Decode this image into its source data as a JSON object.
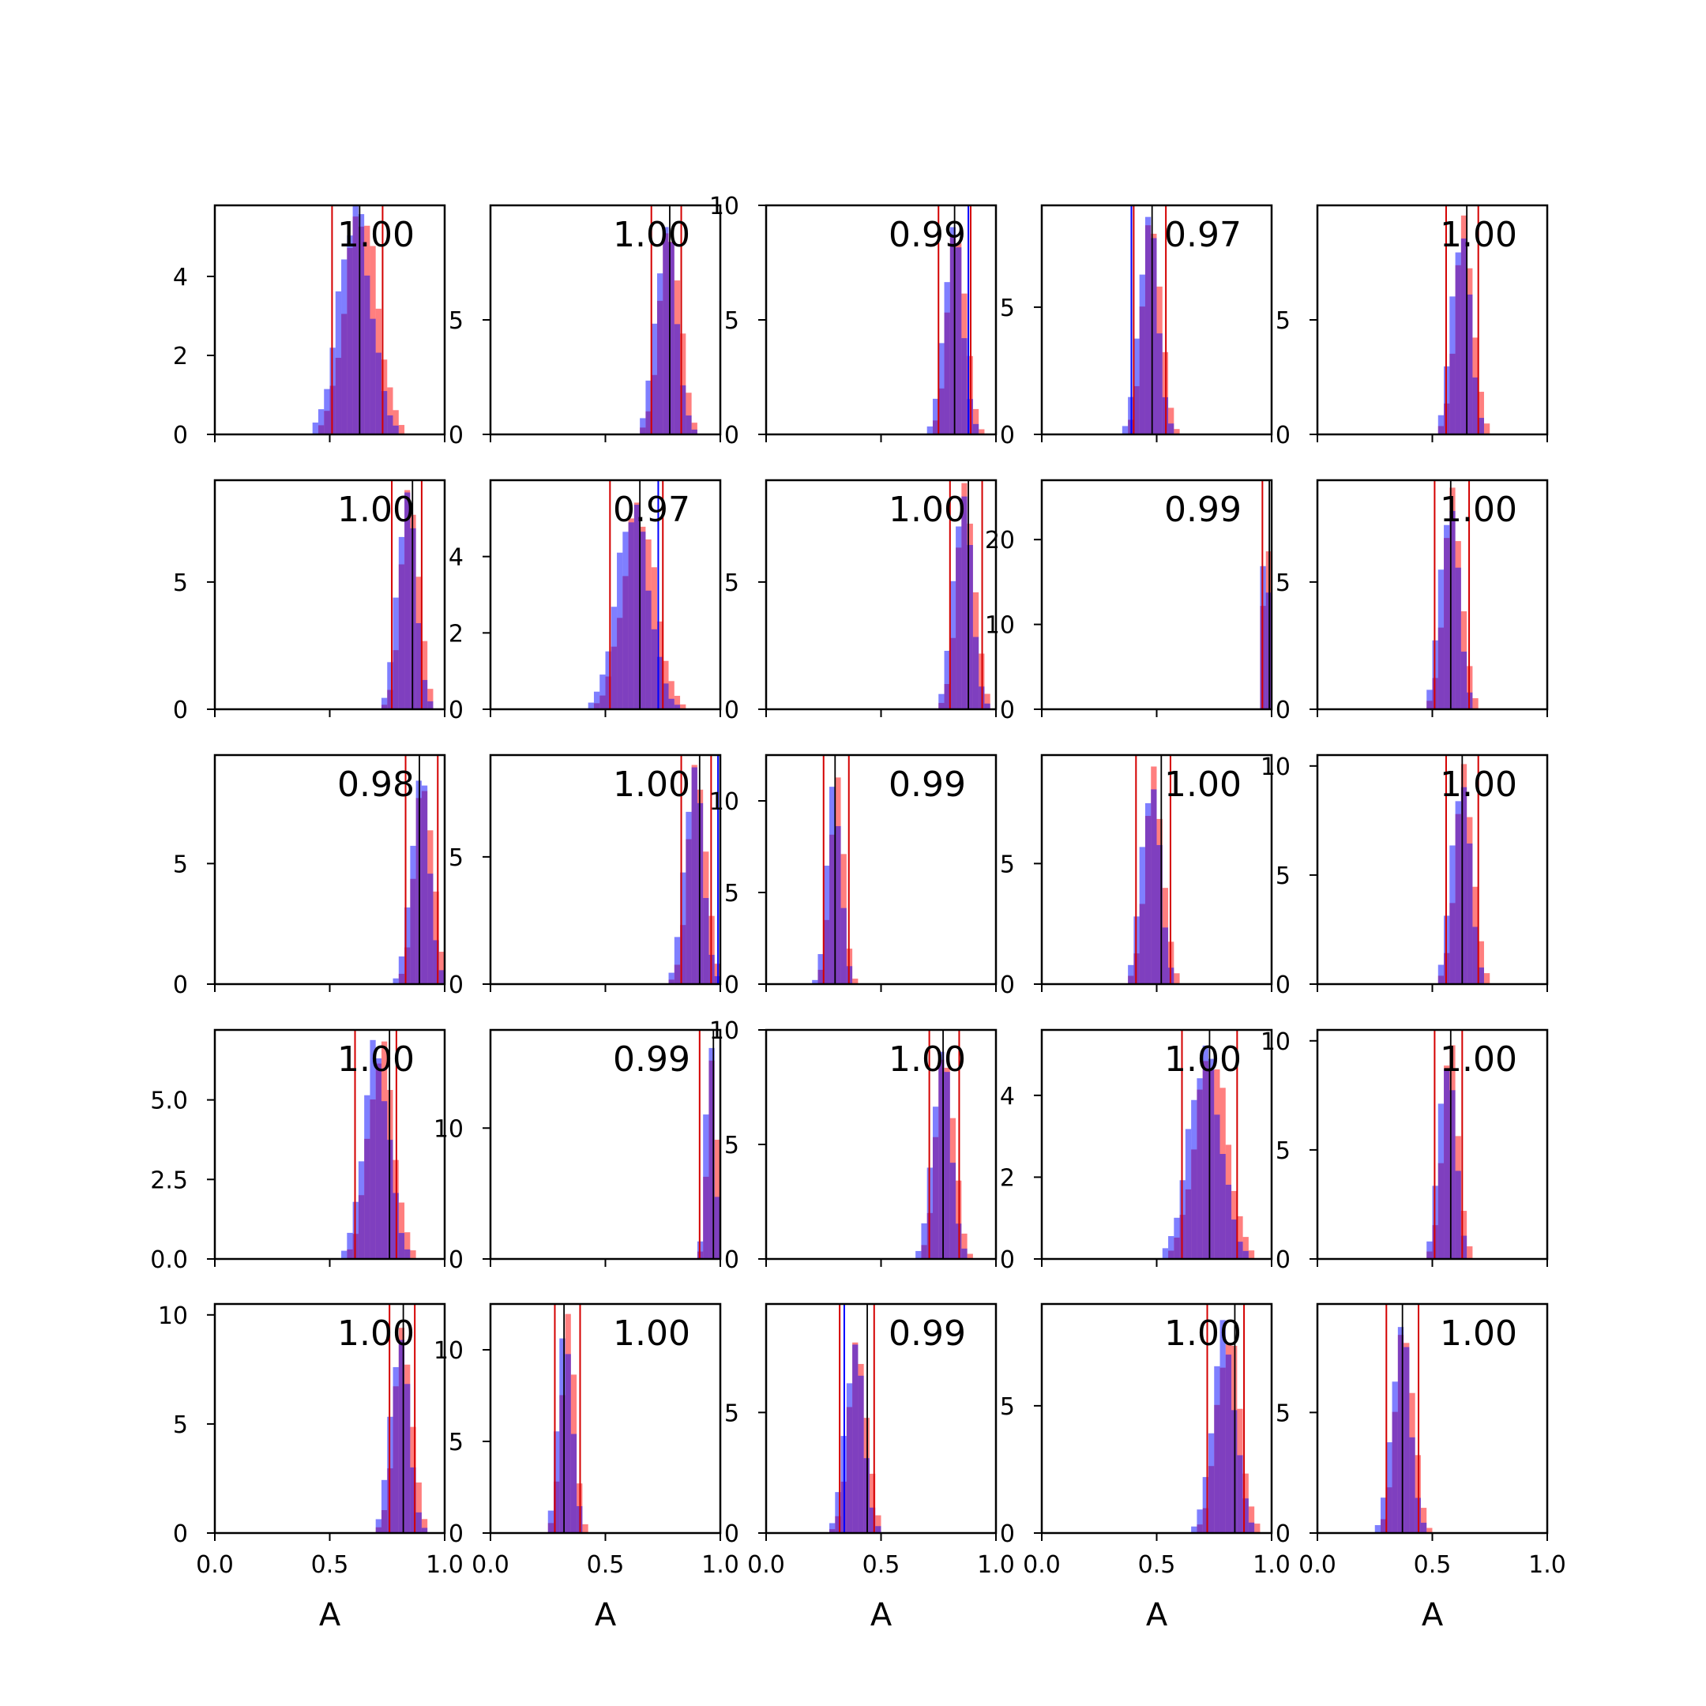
{
  "colors": {
    "hist_a": "#ff0000",
    "hist_b": "#0000ff",
    "hist_opacity": 0.5,
    "interval_lines": "#d40000",
    "point_line": "#000000"
  },
  "chart_data": {
    "type": "histogram-grid",
    "rows": 5,
    "cols": 5,
    "xlim": [
      0,
      1
    ],
    "xticks": [
      "0.0",
      "0.5",
      "1.0"
    ],
    "xlabel": "A",
    "panels": [
      {
        "label": "1.00",
        "ymax": 5.8,
        "yticks": [
          [
            0,
            "0"
          ],
          [
            2,
            "2"
          ],
          [
            4,
            "4"
          ]
        ],
        "mean": 0.62,
        "sd": 0.07,
        "peak": 5.7,
        "lo": 0.51,
        "hi": 0.73,
        "mark": 0.63,
        "bmark": null
      },
      {
        "label": "1.00",
        "ymax": 10,
        "yticks": [
          [
            0,
            "0"
          ],
          [
            5,
            "5"
          ]
        ],
        "mean": 0.77,
        "sd": 0.045,
        "peak": 9.0,
        "lo": 0.7,
        "hi": 0.83,
        "mark": 0.78,
        "bmark": null
      },
      {
        "label": "0.99",
        "ymax": 10,
        "yticks": [
          [
            0,
            "0"
          ],
          [
            5,
            "5"
          ],
          [
            10,
            "10"
          ]
        ],
        "mean": 0.82,
        "sd": 0.04,
        "peak": 9.0,
        "lo": 0.75,
        "hi": 0.89,
        "mark": 0.82,
        "bmark": 0.88
      },
      {
        "label": "0.97",
        "ymax": 9,
        "yticks": [
          [
            0,
            "0"
          ],
          [
            5,
            "5"
          ]
        ],
        "mean": 0.47,
        "sd": 0.04,
        "peak": 8.5,
        "lo": 0.4,
        "hi": 0.54,
        "mark": 0.48,
        "bmark": 0.39
      },
      {
        "label": "1.00",
        "ymax": 10,
        "yticks": [
          [
            0,
            "0"
          ],
          [
            5,
            "5"
          ]
        ],
        "mean": 0.63,
        "sd": 0.04,
        "peak": 9.0,
        "lo": 0.56,
        "hi": 0.7,
        "mark": 0.65,
        "bmark": null
      },
      {
        "label": "1.00",
        "ymax": 9,
        "yticks": [
          [
            0,
            "0"
          ],
          [
            5,
            "5"
          ]
        ],
        "mean": 0.84,
        "sd": 0.04,
        "peak": 8.5,
        "lo": 0.77,
        "hi": 0.9,
        "mark": 0.86,
        "bmark": null
      },
      {
        "label": "0.97",
        "ymax": 6,
        "yticks": [
          [
            0,
            "0"
          ],
          [
            2,
            "2"
          ],
          [
            4,
            "4"
          ]
        ],
        "mean": 0.63,
        "sd": 0.07,
        "peak": 5.3,
        "lo": 0.52,
        "hi": 0.75,
        "mark": 0.65,
        "bmark": 0.73
      },
      {
        "label": "1.00",
        "ymax": 9,
        "yticks": [
          [
            0,
            "0"
          ],
          [
            5,
            "5"
          ]
        ],
        "mean": 0.86,
        "sd": 0.04,
        "peak": 8.5,
        "lo": 0.8,
        "hi": 0.94,
        "mark": 0.88,
        "bmark": null
      },
      {
        "label": "0.99",
        "ymax": 27,
        "yticks": [
          [
            0,
            "0"
          ],
          [
            10,
            "10"
          ],
          [
            20,
            "20"
          ]
        ],
        "mean": 0.975,
        "sd": 0.012,
        "peak": 26,
        "lo": 0.96,
        "hi": 1.0,
        "mark": 0.99,
        "bmark": null
      },
      {
        "label": "1.00",
        "ymax": 9,
        "yticks": [
          [
            0,
            "0"
          ],
          [
            5,
            "5"
          ]
        ],
        "mean": 0.58,
        "sd": 0.04,
        "peak": 8.2,
        "lo": 0.51,
        "hi": 0.66,
        "mark": 0.58,
        "bmark": null
      },
      {
        "label": "0.98",
        "ymax": 9.5,
        "yticks": [
          [
            0,
            "0"
          ],
          [
            5,
            "5"
          ]
        ],
        "mean": 0.9,
        "sd": 0.04,
        "peak": 8.5,
        "lo": 0.83,
        "hi": 0.97,
        "mark": 0.89,
        "bmark": null
      },
      {
        "label": "1.00",
        "ymax": 9,
        "yticks": [
          [
            0,
            "0"
          ],
          [
            5,
            "5"
          ]
        ],
        "mean": 0.89,
        "sd": 0.04,
        "peak": 8.5,
        "lo": 0.83,
        "hi": 0.96,
        "mark": 0.91,
        "bmark": 0.99
      },
      {
        "label": "0.99",
        "ymax": 12.5,
        "yticks": [
          [
            0,
            "0"
          ],
          [
            5,
            "5"
          ],
          [
            10,
            "10"
          ]
        ],
        "mean": 0.3,
        "sd": 0.03,
        "peak": 11,
        "lo": 0.25,
        "hi": 0.36,
        "mark": 0.3,
        "bmark": null
      },
      {
        "label": "1.00",
        "ymax": 9.5,
        "yticks": [
          [
            0,
            "0"
          ],
          [
            5,
            "5"
          ]
        ],
        "mean": 0.48,
        "sd": 0.04,
        "peak": 8.5,
        "lo": 0.41,
        "hi": 0.56,
        "mark": 0.52,
        "bmark": null
      },
      {
        "label": "1.00",
        "ymax": 10.5,
        "yticks": [
          [
            0,
            "0"
          ],
          [
            5,
            "5"
          ],
          [
            10,
            "10"
          ]
        ],
        "mean": 0.63,
        "sd": 0.04,
        "peak": 9.5,
        "lo": 0.56,
        "hi": 0.7,
        "mark": 0.63,
        "bmark": null
      },
      {
        "label": "1.00",
        "ymax": 7.2,
        "yticks": [
          [
            0,
            "0.0"
          ],
          [
            2.5,
            "2.5"
          ],
          [
            5,
            "5.0"
          ]
        ],
        "mean": 0.71,
        "sd": 0.055,
        "peak": 6.6,
        "lo": 0.61,
        "hi": 0.79,
        "mark": 0.76,
        "bmark": null
      },
      {
        "label": "0.99",
        "ymax": 17.5,
        "yticks": [
          [
            0,
            "0"
          ],
          [
            10,
            "10"
          ]
        ],
        "mean": 0.96,
        "sd": 0.02,
        "peak": 16.5,
        "lo": 0.91,
        "hi": 1.0,
        "mark": 0.97,
        "bmark": null
      },
      {
        "label": "1.00",
        "ymax": 10,
        "yticks": [
          [
            0,
            "0"
          ],
          [
            5,
            "5"
          ],
          [
            10,
            "10"
          ]
        ],
        "mean": 0.77,
        "sd": 0.04,
        "peak": 9.0,
        "lo": 0.71,
        "hi": 0.84,
        "mark": 0.77,
        "bmark": null
      },
      {
        "label": "1.00",
        "ymax": 5.6,
        "yticks": [
          [
            0,
            "0"
          ],
          [
            2,
            "2"
          ],
          [
            4,
            "4"
          ]
        ],
        "mean": 0.72,
        "sd": 0.07,
        "peak": 5.0,
        "lo": 0.61,
        "hi": 0.85,
        "mark": 0.73,
        "bmark": null
      },
      {
        "label": "1.00",
        "ymax": 10.5,
        "yticks": [
          [
            0,
            "0"
          ],
          [
            5,
            "5"
          ],
          [
            10,
            "10"
          ]
        ],
        "mean": 0.57,
        "sd": 0.035,
        "peak": 9.5,
        "lo": 0.51,
        "hi": 0.63,
        "mark": 0.58,
        "bmark": null
      },
      {
        "label": "1.00",
        "ymax": 10.5,
        "yticks": [
          [
            0,
            "0"
          ],
          [
            5,
            "5"
          ],
          [
            10,
            "10"
          ]
        ],
        "mean": 0.81,
        "sd": 0.04,
        "peak": 9.0,
        "lo": 0.76,
        "hi": 0.87,
        "mark": 0.82,
        "bmark": null
      },
      {
        "label": "1.00",
        "ymax": 12.5,
        "yticks": [
          [
            0,
            "0"
          ],
          [
            5,
            "5"
          ],
          [
            10,
            "10"
          ]
        ],
        "mean": 0.33,
        "sd": 0.03,
        "peak": 11.5,
        "lo": 0.28,
        "hi": 0.39,
        "mark": 0.32,
        "bmark": null
      },
      {
        "label": "0.99",
        "ymax": 9.5,
        "yticks": [
          [
            0,
            "0"
          ],
          [
            5,
            "5"
          ]
        ],
        "mean": 0.39,
        "sd": 0.04,
        "peak": 7.8,
        "lo": 0.32,
        "hi": 0.47,
        "mark": 0.44,
        "bmark": 0.34
      },
      {
        "label": "1.00",
        "ymax": 9,
        "yticks": [
          [
            0,
            "0"
          ],
          [
            5,
            "5"
          ]
        ],
        "mean": 0.8,
        "sd": 0.05,
        "peak": 7.8,
        "lo": 0.72,
        "hi": 0.88,
        "mark": 0.84,
        "bmark": null
      },
      {
        "label": "1.00",
        "ymax": 9.5,
        "yticks": [
          [
            0,
            "0"
          ],
          [
            5,
            "5"
          ]
        ],
        "mean": 0.37,
        "sd": 0.04,
        "peak": 8.5,
        "lo": 0.3,
        "hi": 0.44,
        "mark": 0.37,
        "bmark": null
      }
    ]
  }
}
